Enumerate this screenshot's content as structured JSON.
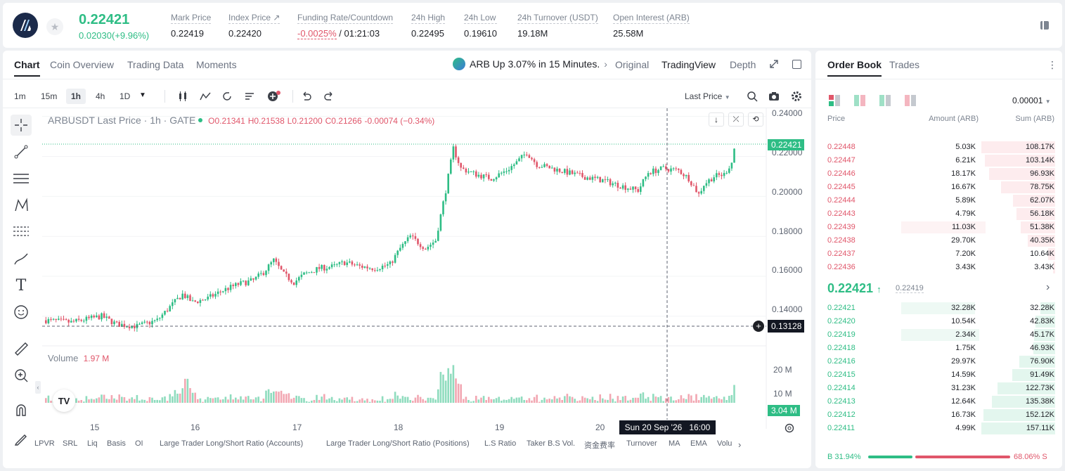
{
  "header": {
    "last_price": "0.22421",
    "change": "0.02030(+9.96%)",
    "stats": [
      {
        "label": "Mark Price",
        "value": "0.22419"
      },
      {
        "label": "Index Price ↗",
        "value": "0.22420"
      },
      {
        "label": "Funding Rate/Countdown",
        "value": "-0.0025%",
        "value2": "/ 01:21:03"
      },
      {
        "label": "24h High",
        "value": "0.22495"
      },
      {
        "label": "24h Low",
        "value": "0.19610"
      },
      {
        "label": "24h Turnover (USDT)",
        "value": "19.18M"
      },
      {
        "label": "Open Interest (ARB)",
        "value": "25.58M"
      }
    ]
  },
  "chart_tabs": [
    "Chart",
    "Coin Overview",
    "Trading Data",
    "Moments"
  ],
  "news": "ARB Up 3.07% in 15 Minutes.",
  "view_tabs": [
    "Original",
    "TradingView",
    "Depth"
  ],
  "timeframes": [
    "1m",
    "15m",
    "1h",
    "4h",
    "1D"
  ],
  "price_source": "Last Price",
  "legend": {
    "symbol": "ARBUSDT Last Price · 1h · GATE",
    "o": "O0.21341",
    "h": "H0.21538",
    "l": "L0.21200",
    "c": "C0.21266",
    "chg": "-0.00074 (−0.34%)"
  },
  "volume_label": "Volume",
  "volume_value": "1.97 M",
  "price_axis": [
    "0.24000",
    "0.22000",
    "0.20000",
    "0.18000",
    "0.16000",
    "0.14000"
  ],
  "current_price_tag": "0.22421",
  "cursor_price_tag": "0.13128",
  "volume_axis": [
    "20 M",
    "10 M"
  ],
  "volume_tag": "3.04 M",
  "time_axis": [
    "15",
    "16",
    "17",
    "18",
    "19",
    "20"
  ],
  "crosshair_time": "Sun 20 Sep '26   16:00",
  "bottom_indicators": [
    "LPVR",
    "SRL",
    "Liq",
    "Basis",
    "OI",
    "Large Trader Long/Short Ratio (Accounts)",
    "Large Trader Long/Short Ratio (Positions)",
    "L.S Ratio",
    "Taker B.S Vol.",
    "资金费率",
    "Turnover",
    "MA",
    "EMA",
    "Volu"
  ],
  "orderbook": {
    "tabs": [
      "Order Book",
      "Trades"
    ],
    "precision": "0.00001",
    "headers": [
      "Price",
      "Amount (ARB)",
      "Sum (ARB)"
    ],
    "asks": [
      [
        "0.22448",
        "5.03K",
        "108.17K",
        1.0,
        0.0
      ],
      [
        "0.22447",
        "6.21K",
        "103.14K",
        0.95,
        0.0
      ],
      [
        "0.22446",
        "18.17K",
        "96.93K",
        0.9,
        0.0
      ],
      [
        "0.22445",
        "16.67K",
        "78.75K",
        0.73,
        0.0
      ],
      [
        "0.22444",
        "5.89K",
        "62.07K",
        0.57,
        0.0
      ],
      [
        "0.22443",
        "4.79K",
        "56.18K",
        0.52,
        0.0
      ],
      [
        "0.22439",
        "11.03K",
        "51.38K",
        0.47,
        0.4
      ],
      [
        "0.22438",
        "29.70K",
        "40.35K",
        0.37,
        0.0
      ],
      [
        "0.22437",
        "7.20K",
        "10.64K",
        0.1,
        0.0
      ],
      [
        "0.22436",
        "3.43K",
        "3.43K",
        0.03,
        0.0
      ]
    ],
    "mid_price": "0.22421",
    "mid_mark": "0.22419",
    "bids": [
      [
        "0.22421",
        "32.28K",
        "32.28K",
        0.2,
        0.35
      ],
      [
        "0.22420",
        "10.54K",
        "42.83K",
        0.27,
        0.0
      ],
      [
        "0.22419",
        "2.34K",
        "45.17K",
        0.29,
        0.37
      ],
      [
        "0.22418",
        "1.75K",
        "46.93K",
        0.3,
        0.0
      ],
      [
        "0.22416",
        "29.97K",
        "76.90K",
        0.49,
        0.0
      ],
      [
        "0.22415",
        "14.59K",
        "91.49K",
        0.58,
        0.0
      ],
      [
        "0.22414",
        "31.23K",
        "122.73K",
        0.78,
        0.0
      ],
      [
        "0.22413",
        "12.64K",
        "135.38K",
        0.86,
        0.0
      ],
      [
        "0.22412",
        "16.73K",
        "152.12K",
        0.97,
        0.0
      ],
      [
        "0.22411",
        "4.99K",
        "157.11K",
        1.0,
        0.0
      ]
    ],
    "buy_ratio": "B 31.94%",
    "sell_ratio": "68.06% S",
    "buy_fraction": 0.3194
  },
  "colors": {
    "up": "#2ebd85",
    "down": "#e0566a",
    "up_vol": "#8fdcbe",
    "down_vol": "#f2a7b2"
  },
  "chart_data": {
    "type": "candlestick",
    "title": "ARBUSDT Last Price · 1h · GATE",
    "x_ticks": [
      "15",
      "16",
      "17",
      "18",
      "19",
      "20"
    ],
    "ylim": [
      0.128,
      0.242
    ],
    "anchors": [
      [
        0,
        0.138
      ],
      [
        10,
        0.137
      ],
      [
        18,
        0.139
      ],
      [
        22,
        0.14
      ],
      [
        28,
        0.136
      ],
      [
        36,
        0.135
      ],
      [
        44,
        0.138
      ],
      [
        50,
        0.146
      ],
      [
        54,
        0.151
      ],
      [
        58,
        0.147
      ],
      [
        64,
        0.149
      ],
      [
        70,
        0.153
      ],
      [
        76,
        0.156
      ],
      [
        82,
        0.158
      ],
      [
        86,
        0.162
      ],
      [
        90,
        0.168
      ],
      [
        94,
        0.161
      ],
      [
        98,
        0.157
      ],
      [
        102,
        0.161
      ],
      [
        108,
        0.164
      ],
      [
        114,
        0.165
      ],
      [
        118,
        0.167
      ],
      [
        124,
        0.165
      ],
      [
        130,
        0.164
      ],
      [
        136,
        0.166
      ],
      [
        140,
        0.174
      ],
      [
        144,
        0.18
      ],
      [
        150,
        0.174
      ],
      [
        154,
        0.178
      ],
      [
        158,
        0.203
      ],
      [
        161,
        0.224
      ],
      [
        164,
        0.214
      ],
      [
        170,
        0.211
      ],
      [
        176,
        0.209
      ],
      [
        182,
        0.213
      ],
      [
        186,
        0.217
      ],
      [
        190,
        0.222
      ],
      [
        194,
        0.216
      ],
      [
        200,
        0.214
      ],
      [
        206,
        0.212
      ],
      [
        212,
        0.21
      ],
      [
        220,
        0.208
      ],
      [
        228,
        0.205
      ],
      [
        234,
        0.203
      ],
      [
        238,
        0.212
      ],
      [
        244,
        0.214
      ],
      [
        250,
        0.213
      ],
      [
        254,
        0.209
      ],
      [
        258,
        0.201
      ],
      [
        260,
        0.206
      ],
      [
        264,
        0.21
      ],
      [
        268,
        0.211
      ],
      [
        271,
        0.217
      ],
      [
        272,
        0.224
      ]
    ],
    "volume_range": [
      0,
      25
    ]
  }
}
